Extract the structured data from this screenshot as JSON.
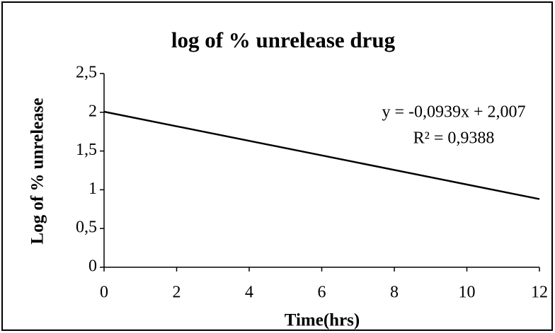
{
  "chart_data": {
    "type": "line",
    "title": "log of % unrelease  drug",
    "xlabel": "Time(hrs)",
    "ylabel": "Log of %  unrelease",
    "annotations": [
      "y = -0,0939x + 2,007",
      "R² = 0,9388"
    ],
    "x": [
      0,
      12
    ],
    "values": [
      2.007,
      0.88
    ],
    "color": "#000000",
    "xlim": [
      0,
      12
    ],
    "xticks": [
      0,
      2,
      4,
      6,
      8,
      10,
      12
    ],
    "ylim": [
      0,
      2.5
    ],
    "yticks": [
      0,
      {
        "value": 0.5,
        "label": "0,5"
      },
      1,
      {
        "value": 1.5,
        "label": "1,5"
      },
      2,
      {
        "value": 2.5,
        "label": "2,5"
      }
    ],
    "grid": false
  }
}
